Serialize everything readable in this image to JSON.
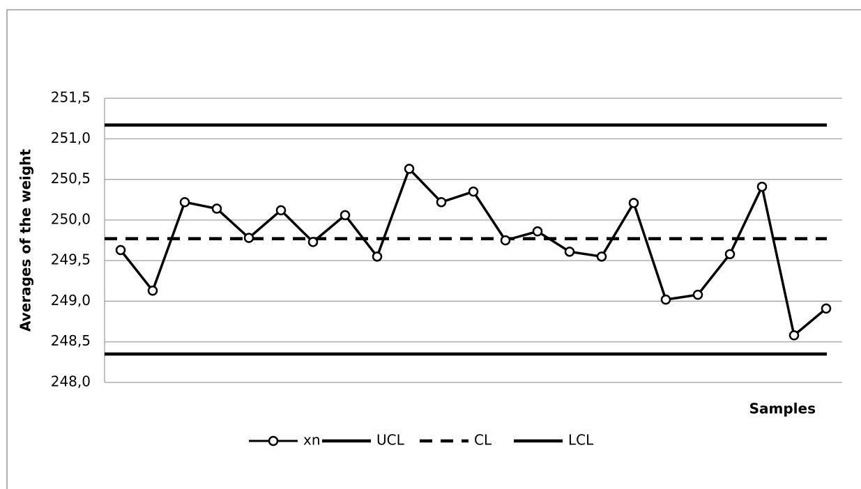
{
  "chart_data": {
    "type": "line",
    "y_label": "Averages of the weight",
    "x_label": "Samples",
    "categories": [
      null,
      null,
      null,
      null,
      null,
      null,
      null,
      null,
      null,
      null,
      null,
      null,
      null,
      null,
      null,
      null,
      null,
      null,
      null,
      null,
      null,
      null,
      null
    ],
    "series": [
      {
        "name": "xn",
        "color": "#000000",
        "marker": "circle",
        "dash": false,
        "values": [
          249.63,
          249.13,
          250.22,
          250.14,
          249.78,
          250.12,
          249.73,
          250.06,
          249.55,
          250.63,
          250.22,
          250.35,
          249.75,
          249.86,
          249.61,
          249.55,
          250.21,
          249.02,
          249.08,
          249.58,
          250.41,
          248.58,
          248.91
        ]
      }
    ],
    "limits": [
      {
        "name": "UCL",
        "color": "#000000",
        "dash": false,
        "value": 251.17
      },
      {
        "name": "CL",
        "color": "#000000",
        "dash": true,
        "value": 249.77
      },
      {
        "name": "LCL",
        "color": "#000000",
        "dash": false,
        "value": 248.35
      }
    ],
    "ylim": [
      248.0,
      251.5
    ],
    "yticks": [
      {
        "value": 248.0,
        "label": "248,0"
      },
      {
        "value": 248.5,
        "label": "248,5"
      },
      {
        "value": 249.0,
        "label": "249,0"
      },
      {
        "value": 249.5,
        "label": "249,5"
      },
      {
        "value": 250.0,
        "label": "250,0"
      },
      {
        "value": 250.5,
        "label": "250,5"
      },
      {
        "value": 251.0,
        "label": "251,0"
      },
      {
        "value": 251.5,
        "label": "251,5"
      }
    ],
    "grid": true,
    "legend": "bottom"
  }
}
